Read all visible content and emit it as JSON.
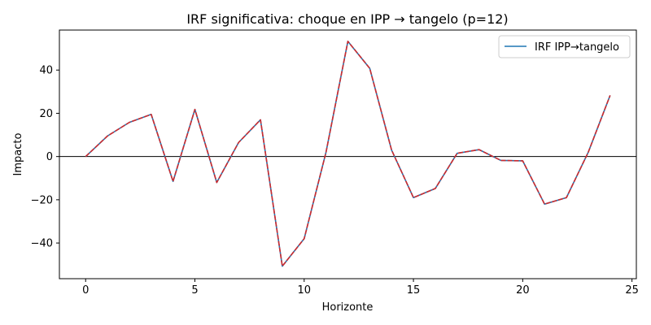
{
  "chart_data": {
    "type": "line",
    "title": "IRF significativa: choque en IPP → tangelo (p=12)",
    "xlabel": "Horizonte",
    "ylabel": "Impacto",
    "xlim": [
      -1.2,
      25.2
    ],
    "ylim": [
      -56.5,
      58.5
    ],
    "xticks": [
      0,
      5,
      10,
      15,
      20,
      25
    ],
    "yticks": [
      -40,
      -20,
      0,
      20,
      40
    ],
    "hline": 0,
    "legend": {
      "position": "top-right",
      "entries": [
        "IRF IPP→tangelo"
      ]
    },
    "colors": {
      "irf": "#1f77b4",
      "overlay": "#d62728",
      "zero_line": "#000000"
    },
    "x": [
      0,
      1,
      2,
      3,
      4,
      5,
      6,
      7,
      8,
      9,
      10,
      11,
      12,
      13,
      14,
      15,
      16,
      17,
      18,
      19,
      20,
      21,
      22,
      23,
      24
    ],
    "series": [
      {
        "name": "IRF IPP→tangelo",
        "values": [
          0,
          9.5,
          15.8,
          19.5,
          -11.5,
          21.8,
          -12,
          6.5,
          17,
          -50.7,
          -38,
          2,
          53.3,
          40.8,
          3,
          -19,
          -14.8,
          1.5,
          3.2,
          -1.8,
          -2,
          -22,
          -19,
          2,
          28.3
        ]
      },
      {
        "name": "overlay",
        "values": [
          0,
          9.5,
          15.8,
          19.5,
          -11.5,
          21.8,
          -12,
          6.5,
          17,
          -50.7,
          -38,
          2,
          53.3,
          40.8,
          3,
          -19,
          -14.8,
          1.5,
          3.2,
          -1.8,
          -2,
          -22,
          -19,
          2,
          28.3
        ]
      }
    ]
  }
}
